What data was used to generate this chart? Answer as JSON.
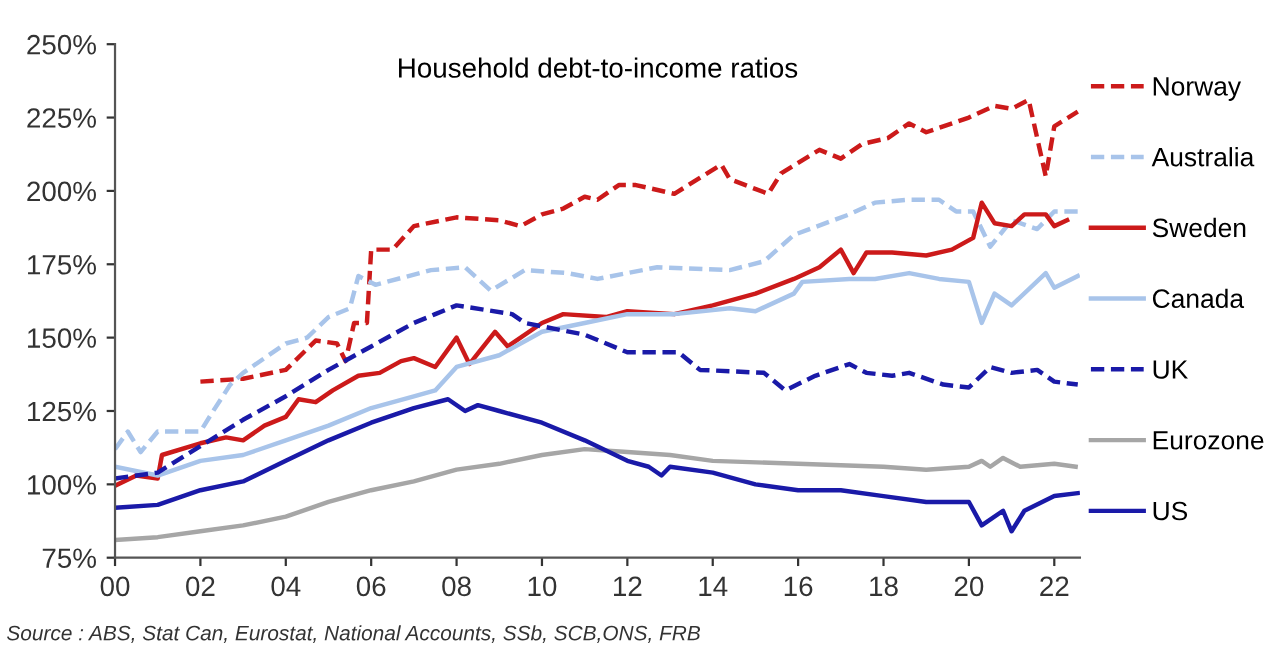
{
  "chart_data": {
    "type": "line",
    "title": "Household debt-to-income ratios",
    "annotations": [
      "Source : ABS, Stat Can, Eurostat, National Accounts, SSb, SCB,ONS, FRB"
    ],
    "xlim": [
      2000,
      2022.6
    ],
    "ylim": [
      75,
      250
    ],
    "xticks": [
      {
        "value": 2000,
        "label": "00"
      },
      {
        "value": 2002,
        "label": "02"
      },
      {
        "value": 2004,
        "label": "04"
      },
      {
        "value": 2006,
        "label": "06"
      },
      {
        "value": 2008,
        "label": "08"
      },
      {
        "value": 2010,
        "label": "10"
      },
      {
        "value": 2012,
        "label": "12"
      },
      {
        "value": 2014,
        "label": "14"
      },
      {
        "value": 2016,
        "label": "16"
      },
      {
        "value": 2018,
        "label": "18"
      },
      {
        "value": 2020,
        "label": "20"
      },
      {
        "value": 2022,
        "label": "22"
      }
    ],
    "yticks": [
      {
        "value": 75,
        "label": "75%"
      },
      {
        "value": 100,
        "label": "100%"
      },
      {
        "value": 125,
        "label": "125%"
      },
      {
        "value": 150,
        "label": "150%"
      },
      {
        "value": 175,
        "label": "175%"
      },
      {
        "value": 200,
        "label": "200%"
      },
      {
        "value": 225,
        "label": "225%"
      },
      {
        "value": 250,
        "label": "250%"
      }
    ],
    "grid": false,
    "legend": "right",
    "marker": "none",
    "series": [
      {
        "name": "Norway",
        "color": "#cc1a1a",
        "line_style": "dashed",
        "x": [
          2002,
          2003,
          2004,
          2004.7,
          2005.2,
          2005.4,
          2005.6,
          2005.9,
          2006,
          2006.5,
          2007,
          2008,
          2009,
          2009.5,
          2010,
          2010.5,
          2011,
          2011.3,
          2011.8,
          2012.2,
          2013.1,
          2014.2,
          2014.4,
          2015.3,
          2015.6,
          2016.5,
          2017,
          2017.5,
          2018.1,
          2018.6,
          2019,
          2020,
          2020.6,
          2021,
          2021.4,
          2021.8,
          2022,
          2022.55
        ],
        "values": [
          135,
          136,
          139,
          149,
          148,
          142,
          155,
          155,
          180,
          180,
          188,
          191,
          190,
          188,
          192,
          194,
          198,
          197,
          202,
          202,
          199,
          209,
          204,
          199,
          206,
          214,
          211,
          216,
          218,
          223,
          220,
          225,
          229,
          228,
          231,
          205,
          222,
          227
        ]
      },
      {
        "name": "Australia",
        "color": "#a8c4ea",
        "line_style": "dashed",
        "x": [
          2000,
          2000.3,
          2000.6,
          2001,
          2002,
          2002.3,
          2002.7,
          2003,
          2004,
          2004.5,
          2005,
          2005.5,
          2005.7,
          2006.1,
          2007.4,
          2008.2,
          2008.8,
          2009.6,
          2010.6,
          2011.3,
          2012.7,
          2014.4,
          2015.2,
          2015.9,
          2017.2,
          2017.8,
          2018.6,
          2019.3,
          2019.7,
          2020.1,
          2020.5,
          2021,
          2021.6,
          2022,
          2022.55
        ],
        "values": [
          112,
          118,
          111,
          118,
          118,
          125,
          134,
          138,
          148,
          150,
          157,
          160,
          171,
          168,
          173,
          174,
          166,
          173,
          172,
          170,
          174,
          173,
          176,
          185,
          192,
          196,
          197,
          197,
          193,
          193,
          181,
          190,
          187,
          193,
          193
        ]
      },
      {
        "name": "Sweden",
        "color": "#cc1a1a",
        "line_style": "solid",
        "x": [
          2000,
          2000.5,
          2001,
          2001.1,
          2002,
          2002.6,
          2003,
          2003.5,
          2004,
          2004.3,
          2004.7,
          2005.1,
          2005.7,
          2006.2,
          2006.7,
          2007,
          2007.5,
          2008,
          2008.3,
          2008.9,
          2009.2,
          2010,
          2010.5,
          2011.5,
          2012,
          2013.1,
          2014,
          2015,
          2015.9,
          2016.5,
          2017,
          2017.3,
          2017.6,
          2018.2,
          2019,
          2019.6,
          2020.1,
          2020.3,
          2020.6,
          2021,
          2021.3,
          2021.8,
          2022,
          2022.3
        ],
        "values": [
          99.5,
          103,
          102,
          110,
          114,
          116,
          115,
          120,
          123,
          129,
          128,
          132,
          137,
          138,
          142,
          143,
          140,
          150,
          141,
          152,
          147,
          155,
          158,
          157,
          159,
          158,
          161,
          165,
          170,
          174,
          180,
          172,
          179,
          179,
          178,
          180,
          184,
          196,
          189,
          188,
          192,
          192,
          188,
          190
        ]
      },
      {
        "name": "Canada",
        "color": "#a8c4ea",
        "line_style": "solid",
        "x": [
          2000,
          2001,
          2002,
          2003,
          2004,
          2005,
          2006,
          2007,
          2007.5,
          2008,
          2009,
          2010,
          2011,
          2012,
          2013.1,
          2014.4,
          2015,
          2015.9,
          2016.1,
          2017.2,
          2017.8,
          2018.6,
          2019.3,
          2020,
          2020.3,
          2020.6,
          2021,
          2021.8,
          2022,
          2022.55
        ],
        "values": [
          106,
          103,
          108,
          110,
          115,
          120,
          126,
          130,
          132,
          140,
          144,
          152,
          155,
          158,
          158,
          160,
          159,
          165,
          169,
          170,
          170,
          172,
          170,
          169,
          155,
          165,
          161,
          172,
          167,
          171
        ]
      },
      {
        "name": "UK",
        "color": "#1a1aa8",
        "line_style": "dashed",
        "x": [
          2000,
          2001,
          2002,
          2003,
          2004,
          2005,
          2006,
          2007,
          2007.5,
          2008,
          2009.3,
          2009.6,
          2011,
          2012,
          2013.2,
          2013.7,
          2015.2,
          2015.7,
          2016.4,
          2017.2,
          2017.6,
          2018.2,
          2018.6,
          2019.4,
          2020,
          2020.5,
          2021,
          2021.6,
          2022,
          2022.55
        ],
        "values": [
          102,
          104,
          113,
          122,
          130,
          139,
          147,
          155,
          158,
          161,
          158,
          155,
          151,
          145,
          145,
          139,
          138,
          132,
          137,
          141,
          138,
          137,
          138,
          134,
          133,
          140,
          138,
          139,
          135,
          134
        ]
      },
      {
        "name": "Eurozone",
        "color": "#a6a6a6",
        "line_style": "solid",
        "x": [
          2000,
          2001,
          2002,
          2003,
          2004,
          2005,
          2006,
          2007,
          2008,
          2009,
          2010,
          2011,
          2012,
          2013,
          2014,
          2016,
          2018,
          2019,
          2020,
          2020.3,
          2020.5,
          2020.8,
          2021.2,
          2022,
          2022.5
        ],
        "values": [
          81,
          82,
          84,
          86,
          89,
          94,
          98,
          101,
          105,
          107,
          110,
          112,
          111,
          110,
          108,
          107,
          106,
          105,
          106,
          108,
          106,
          109,
          106,
          107,
          106
        ]
      },
      {
        "name": "US",
        "color": "#1a1aa8",
        "line_style": "solid",
        "x": [
          2000,
          2001,
          2002,
          2003,
          2004,
          2005,
          2006,
          2007,
          2007.8,
          2008.2,
          2008.5,
          2009,
          2010,
          2011,
          2012,
          2012.5,
          2012.8,
          2013,
          2014,
          2015,
          2016,
          2017,
          2018,
          2019,
          2020,
          2020.3,
          2020.8,
          2021,
          2021.3,
          2022,
          2022.55
        ],
        "values": [
          92,
          93,
          98,
          101,
          108,
          115,
          121,
          126,
          129,
          125,
          127,
          125,
          121,
          115,
          108,
          106,
          103,
          106,
          104,
          100,
          98,
          98,
          96,
          94,
          94,
          86,
          91,
          84,
          91,
          96,
          97
        ]
      }
    ]
  }
}
